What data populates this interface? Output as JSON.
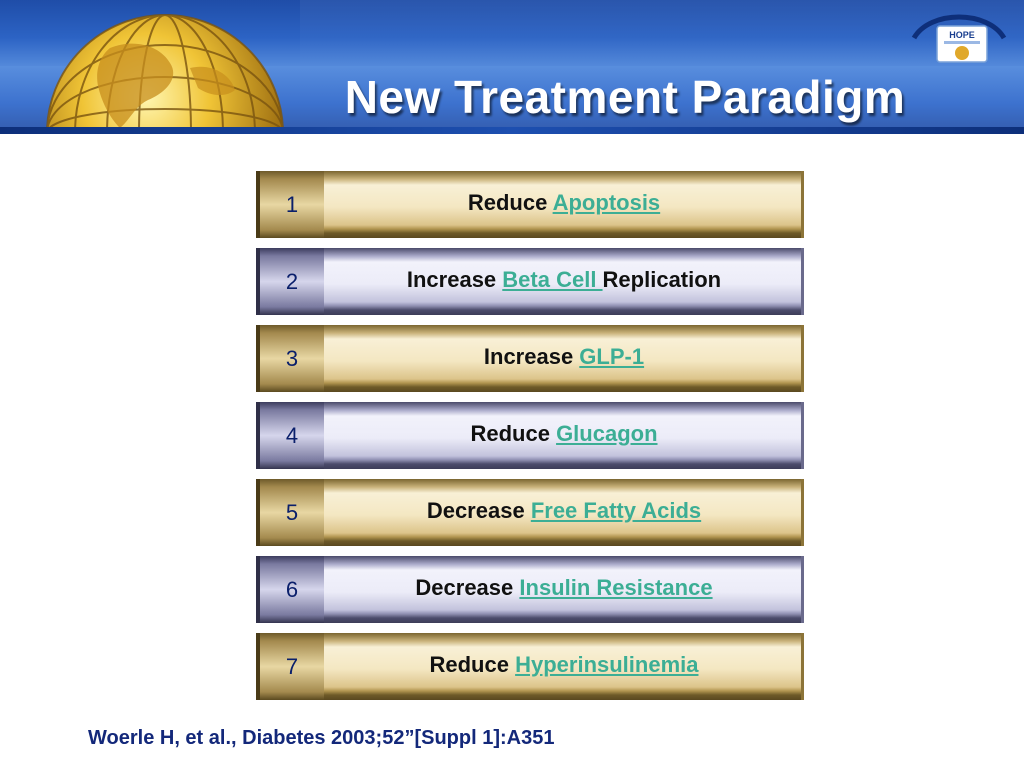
{
  "slide": {
    "title": "New Treatment Paradigm",
    "citation": "Woerle H, et al., Diabetes 2003;52”[Suppl 1]:A351"
  },
  "logo": {
    "text": "HOPE"
  },
  "items": [
    {
      "number": "1",
      "prefix": "Reduce ",
      "highlight": "Apoptosis",
      "suffix": "",
      "style": "gold"
    },
    {
      "number": "2",
      "prefix": "Increase ",
      "highlight": "Beta Cell ",
      "suffix": "Replication",
      "style": "lavender"
    },
    {
      "number": "3",
      "prefix": "Increase ",
      "highlight": "GLP-1",
      "suffix": "",
      "style": "gold"
    },
    {
      "number": "4",
      "prefix": "Reduce ",
      "highlight": "Glucagon",
      "suffix": "",
      "style": "lavender"
    },
    {
      "number": "5",
      "prefix": "Decrease ",
      "highlight": "Free Fatty Acids",
      "suffix": "",
      "style": "gold"
    },
    {
      "number": "6",
      "prefix": "Decrease ",
      "highlight": "Insulin Resistance",
      "suffix": "",
      "style": "lavender"
    },
    {
      "number": "7",
      "prefix": "Reduce ",
      "highlight": "Hyperinsulinemia",
      "suffix": "",
      "style": "gold"
    }
  ],
  "colors": {
    "highlight_text": "#3cae95",
    "number_text": "#0a1f6b",
    "citation_text": "#13287a",
    "header_blue": "#2c63c4"
  },
  "icons": {
    "globe": "globe-icon",
    "logo": "hope-logo-icon"
  }
}
